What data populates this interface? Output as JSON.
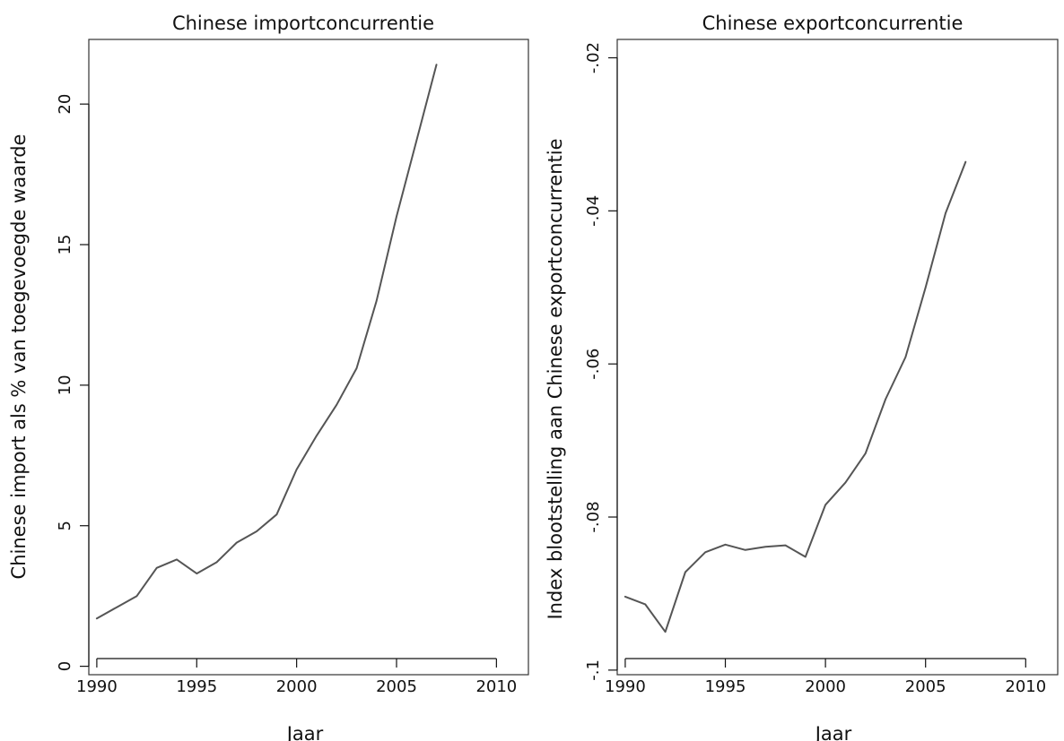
{
  "colors": {
    "line": "#555555",
    "frame": "#333333",
    "background": "#ffffff"
  },
  "chart_data": [
    {
      "type": "line",
      "title": "Chinese importconcurrentie",
      "xlabel": "Jaar",
      "ylabel": "Chinese import als % van toegevoegde waarde",
      "xlim": [
        1989.6,
        2011.6
      ],
      "ylim": [
        -0.3,
        22.3
      ],
      "xticks": [
        1990,
        1995,
        2000,
        2005,
        2010
      ],
      "xtick_labels": [
        "1990",
        "1995",
        "2000",
        "2005",
        "2010"
      ],
      "yticks": [
        0,
        5,
        10,
        15,
        20
      ],
      "ytick_labels": [
        "0",
        "5",
        "10",
        "15",
        "20"
      ],
      "grid": false,
      "x": [
        1990,
        1991,
        1992,
        1993,
        1994,
        1995,
        1996,
        1997,
        1998,
        1999,
        2000,
        2001,
        2002,
        2003,
        2004,
        2005,
        2006,
        2007
      ],
      "series": [
        {
          "values": [
            1.7,
            2.1,
            2.5,
            3.5,
            3.8,
            3.3,
            3.7,
            4.4,
            4.8,
            5.4,
            7.0,
            8.2,
            9.3,
            10.6,
            13.0,
            16.0,
            18.7,
            21.4
          ]
        }
      ]
    },
    {
      "type": "line",
      "title": "Chinese exportconcurrentie",
      "xlabel": "Jaar",
      "ylabel": "Index blootstelling aan Chinese exportconcurrentie",
      "xlim": [
        1989.6,
        2011.6
      ],
      "ylim": [
        -0.1006,
        -0.0176
      ],
      "xticks": [
        1990,
        1995,
        2000,
        2005,
        2010
      ],
      "xtick_labels": [
        "1990",
        "1995",
        "2000",
        "2005",
        "2010"
      ],
      "yticks": [
        -0.1,
        -0.08,
        -0.06,
        -0.04,
        -0.02
      ],
      "ytick_labels": [
        "-.1",
        "-.08",
        "-.06",
        "-.04",
        "-.02"
      ],
      "grid": false,
      "x": [
        1990,
        1991,
        1992,
        1993,
        1994,
        1995,
        1996,
        1997,
        1998,
        1999,
        2000,
        2001,
        2002,
        2003,
        2004,
        2005,
        2006,
        2007
      ],
      "series": [
        {
          "values": [
            -0.0904,
            -0.0914,
            -0.095,
            -0.0872,
            -0.0846,
            -0.0836,
            -0.0843,
            -0.0839,
            -0.0837,
            -0.0852,
            -0.0784,
            -0.0755,
            -0.0717,
            -0.0646,
            -0.0591,
            -0.05,
            -0.0403,
            -0.0336
          ]
        }
      ]
    }
  ]
}
